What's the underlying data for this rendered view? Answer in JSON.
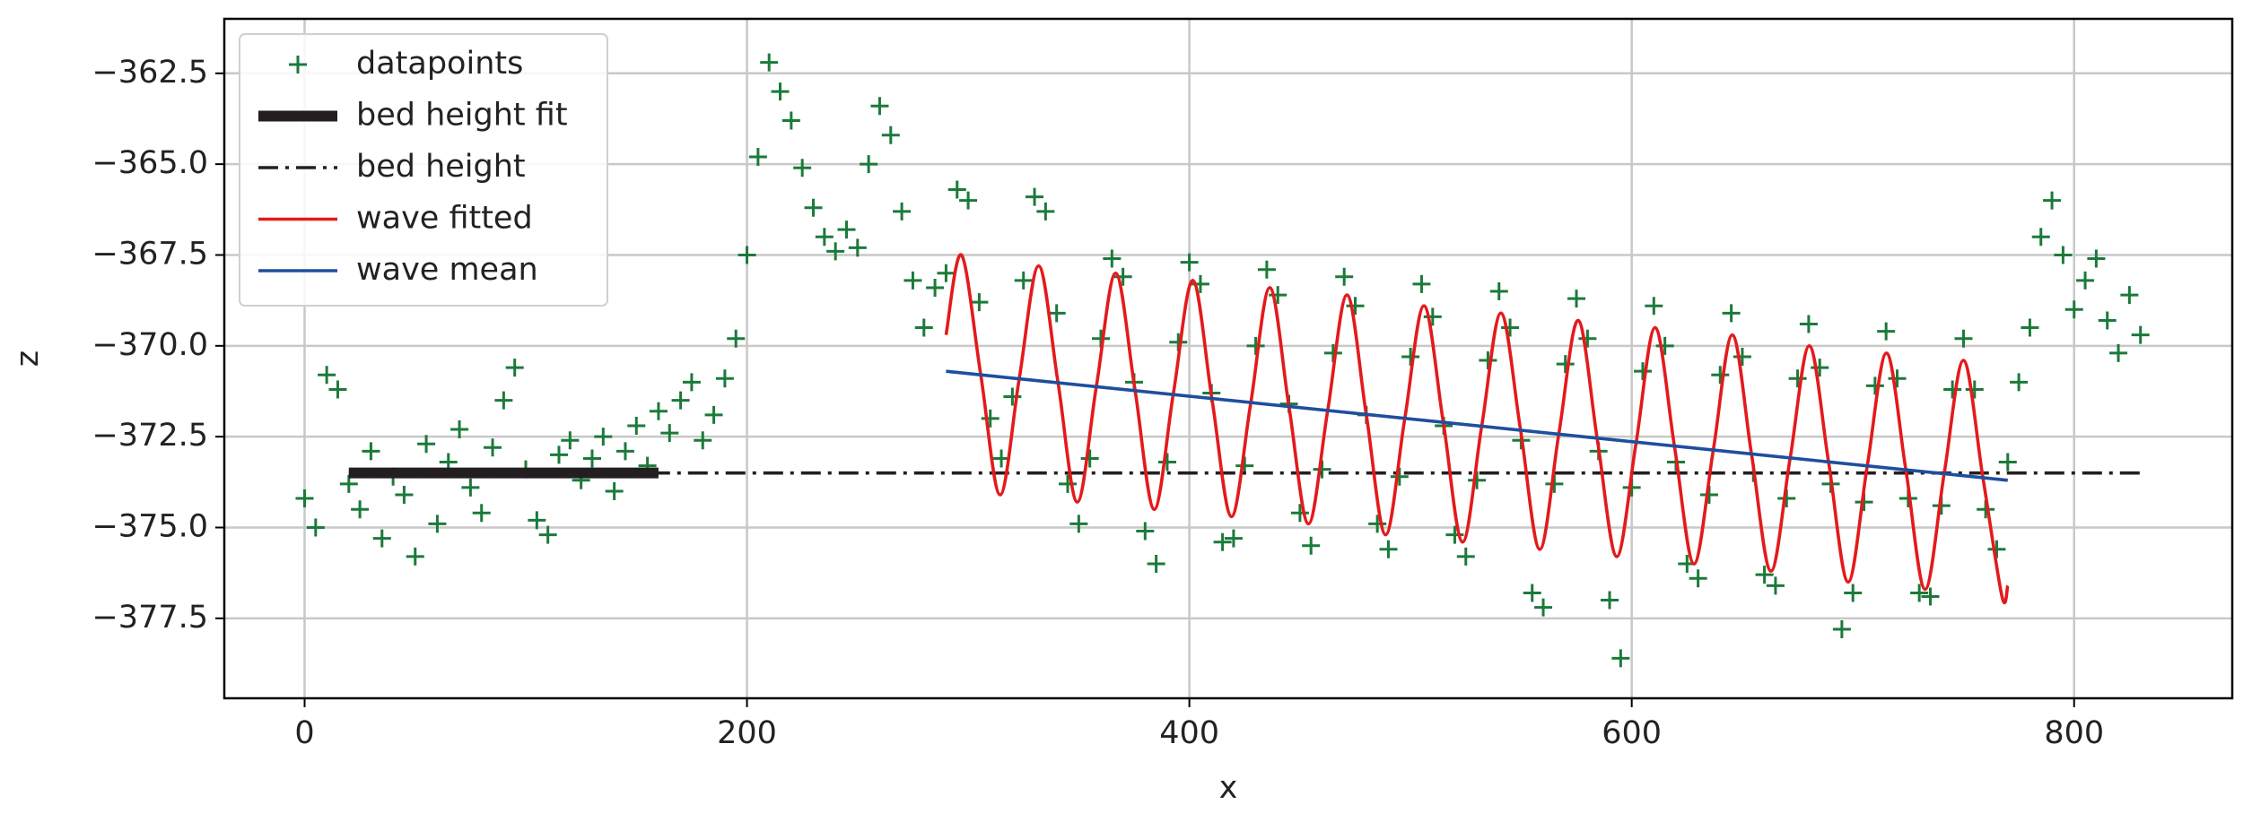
{
  "chart_data": {
    "type": "line",
    "xlabel": "x",
    "ylabel": "z",
    "xlim": [
      -36.3,
      871.5
    ],
    "ylim": [
      -379.7,
      -361.0
    ],
    "xticks": [
      0,
      200,
      400,
      600,
      800
    ],
    "yticks": [
      {
        "value": -377.5,
        "label": "−377.5"
      },
      {
        "value": -375.0,
        "label": "−375.0"
      },
      {
        "value": -372.5,
        "label": "−372.5"
      },
      {
        "value": -370.0,
        "label": "−370.0"
      },
      {
        "value": -367.5,
        "label": "−367.5"
      },
      {
        "value": -365.0,
        "label": "−365.0"
      },
      {
        "value": -362.5,
        "label": "−362.5"
      }
    ],
    "grid": true,
    "legend": "upper left",
    "series": [
      {
        "name": "datapoints",
        "type": "scatter",
        "marker": "+",
        "color": "#1b7a3a",
        "x": [
          0,
          5,
          10,
          15,
          20,
          25,
          30,
          35,
          40,
          45,
          50,
          55,
          60,
          65,
          70,
          75,
          80,
          85,
          90,
          95,
          100,
          105,
          110,
          115,
          120,
          125,
          130,
          135,
          140,
          145,
          150,
          155,
          160,
          165,
          170,
          175,
          180,
          185,
          190,
          195,
          200,
          205,
          210,
          215,
          220,
          225,
          230,
          235,
          240,
          245,
          250,
          255,
          260,
          265,
          270,
          275,
          280,
          285,
          290,
          295,
          300,
          305,
          310,
          315,
          320,
          325,
          330,
          335,
          340,
          345,
          350,
          355,
          360,
          365,
          370,
          375,
          380,
          385,
          390,
          395,
          400,
          405,
          410,
          415,
          420,
          425,
          430,
          435,
          440,
          445,
          450,
          455,
          460,
          465,
          470,
          475,
          480,
          485,
          490,
          495,
          500,
          505,
          510,
          515,
          520,
          525,
          530,
          535,
          540,
          545,
          550,
          555,
          560,
          565,
          570,
          575,
          580,
          585,
          590,
          595,
          600,
          605,
          610,
          615,
          620,
          625,
          630,
          635,
          640,
          645,
          650,
          655,
          660,
          665,
          670,
          675,
          680,
          685,
          690,
          695,
          700,
          705,
          710,
          715,
          720,
          725,
          730,
          735,
          740,
          745,
          750,
          755,
          760,
          765,
          770,
          775,
          780,
          785,
          790,
          795,
          800,
          805,
          810,
          815,
          820,
          825,
          830
        ],
        "values": [
          -374.2,
          -375.0,
          -370.8,
          -371.2,
          -373.8,
          -374.5,
          -372.9,
          -375.3,
          -373.6,
          -374.1,
          -375.8,
          -372.7,
          -374.9,
          -373.2,
          -372.3,
          -373.9,
          -374.6,
          -372.8,
          -371.5,
          -370.6,
          -373.4,
          -374.8,
          -375.2,
          -373.0,
          -372.6,
          -373.7,
          -373.1,
          -372.5,
          -374.0,
          -372.9,
          -372.2,
          -373.3,
          -371.8,
          -372.4,
          -371.5,
          -371.0,
          -372.6,
          -371.9,
          -370.9,
          -369.8,
          -367.5,
          -364.8,
          -362.2,
          -363.0,
          -363.8,
          -365.1,
          -366.2,
          -367.0,
          -367.4,
          -366.8,
          -367.3,
          -365.0,
          -363.4,
          -364.2,
          -366.3,
          -368.2,
          -369.5,
          -368.4,
          -368.0,
          -365.7,
          -366.0,
          -368.8,
          -372.0,
          -373.1,
          -371.4,
          -368.2,
          -365.9,
          -366.3,
          -369.1,
          -373.8,
          -374.9,
          -373.1,
          -369.8,
          -367.6,
          -368.1,
          -371.0,
          -375.1,
          -376.0,
          -373.2,
          -369.9,
          -367.7,
          -368.3,
          -371.3,
          -375.4,
          -375.3,
          -373.3,
          -370.0,
          -367.9,
          -368.6,
          -371.6,
          -374.6,
          -375.5,
          -373.4,
          -370.2,
          -368.1,
          -368.9,
          -371.9,
          -374.9,
          -375.6,
          -373.6,
          -370.3,
          -368.3,
          -369.2,
          -372.2,
          -375.2,
          -375.8,
          -373.7,
          -370.4,
          -368.5,
          -369.5,
          -372.6,
          -376.8,
          -377.2,
          -373.8,
          -370.5,
          -368.7,
          -369.8,
          -372.9,
          -377.0,
          -378.6,
          -373.9,
          -370.7,
          -368.9,
          -370.0,
          -373.2,
          -376.0,
          -376.4,
          -374.1,
          -370.8,
          -369.1,
          -370.3,
          -373.5,
          -376.3,
          -376.6,
          -374.2,
          -370.9,
          -369.4,
          -370.6,
          -373.8,
          -377.8,
          -376.8,
          -374.3,
          -371.1,
          -369.6,
          -370.9,
          -374.2,
          -376.8,
          -376.9,
          -374.4,
          -371.2,
          -369.8,
          -371.2,
          -374.5,
          -375.6,
          -373.2,
          -371.0,
          -369.5,
          -367.0,
          -366.0,
          -367.5,
          -369.0,
          -368.2,
          -367.6,
          -369.3,
          -370.2,
          -368.6,
          -369.7
        ]
      },
      {
        "name": "bed height fit",
        "type": "line",
        "linestyle": "solid",
        "linewidth": 5,
        "color": "#231f20",
        "x": [
          20,
          160
        ],
        "values": [
          -373.5,
          -373.5
        ]
      },
      {
        "name": "bed height",
        "type": "line",
        "linestyle": "dashdot",
        "linewidth": 1.5,
        "color": "#231f20",
        "x": [
          20,
          830
        ],
        "values": [
          -373.5,
          -373.5
        ]
      },
      {
        "name": "wave fitted",
        "type": "line",
        "linestyle": "solid",
        "linewidth": 1.5,
        "color": "#e31a1c",
        "x": [
          290,
          297.0,
          305.7,
          314.4,
          323.1,
          331.9,
          340.6,
          349.3,
          358.0,
          366.7,
          375.4,
          384.1,
          392.8,
          401.6,
          410.3,
          419.0,
          427.7,
          436.4,
          445.1,
          453.8,
          462.5,
          471.3,
          480.0,
          488.7,
          497.4,
          506.1,
          514.8,
          523.5,
          532.2,
          540.9,
          549.7,
          558.4,
          567.1,
          575.8,
          584.5,
          593.2,
          601.9,
          610.6,
          619.4,
          628.1,
          636.8,
          645.5,
          654.2,
          662.9,
          671.6,
          680.3,
          689.0,
          697.8,
          706.5,
          715.2,
          723.9,
          732.6,
          741.3,
          750.0,
          758.7,
          767.4,
          770
        ],
        "values": [
          -369.7,
          -367.5,
          -370.8,
          -374.1,
          -370.9,
          -367.8,
          -371.0,
          -374.3,
          -371.1,
          -368.0,
          -371.2,
          -374.5,
          -371.3,
          -368.2,
          -371.5,
          -374.7,
          -371.6,
          -368.4,
          -371.7,
          -374.9,
          -371.8,
          -368.6,
          -371.9,
          -375.2,
          -372.0,
          -368.9,
          -372.1,
          -375.4,
          -372.2,
          -369.1,
          -372.3,
          -375.6,
          -372.4,
          -369.3,
          -372.6,
          -375.8,
          -372.7,
          -369.5,
          -372.8,
          -376.0,
          -372.9,
          -369.7,
          -373.0,
          -376.2,
          -373.1,
          -370.0,
          -373.2,
          -376.5,
          -373.3,
          -370.2,
          -373.4,
          -376.7,
          -373.5,
          -370.4,
          -373.6,
          -376.9,
          -376.6
        ]
      },
      {
        "name": "wave mean",
        "type": "line",
        "linestyle": "solid",
        "linewidth": 1.5,
        "color": "#1f4e9e",
        "x": [
          290,
          770
        ],
        "values": [
          -370.7,
          -373.7
        ]
      }
    ]
  }
}
